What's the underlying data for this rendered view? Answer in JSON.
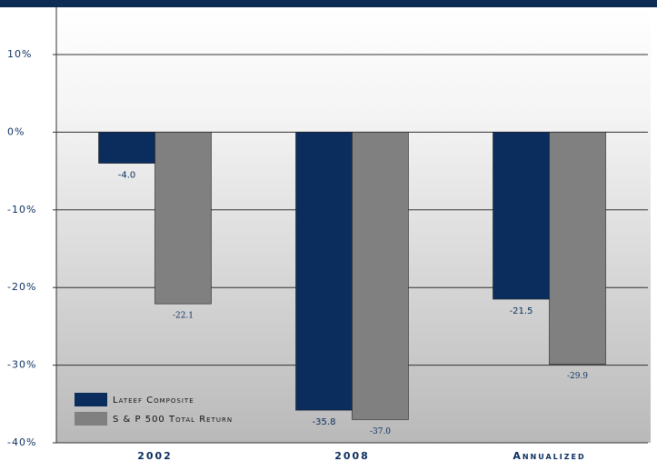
{
  "chart_data": {
    "type": "bar",
    "categories": [
      "2002",
      "2008",
      "Annualized"
    ],
    "series": [
      {
        "name": "Lateef Composite",
        "color": "#0a2d5e",
        "values": [
          -4.0,
          -35.8,
          -21.5
        ],
        "value_labels": [
          "-4.0",
          "-35.8",
          "-21.5"
        ]
      },
      {
        "name": "S & P 500 Total Return",
        "color": "#808080",
        "values": [
          -22.1,
          -37.0,
          -29.9
        ],
        "value_labels": [
          "-22.1",
          "-37.0",
          "-29.9"
        ]
      }
    ],
    "ylim": [
      -40,
      10
    ],
    "yticks": [
      {
        "value": 10,
        "label": "10%"
      },
      {
        "value": 0,
        "label": "0%"
      },
      {
        "value": -10,
        "label": "-10%"
      },
      {
        "value": -20,
        "label": "-20%"
      },
      {
        "value": -30,
        "label": "-30%"
      },
      {
        "value": -40,
        "label": "-40%"
      }
    ],
    "grid": true,
    "legend": "lower left"
  }
}
